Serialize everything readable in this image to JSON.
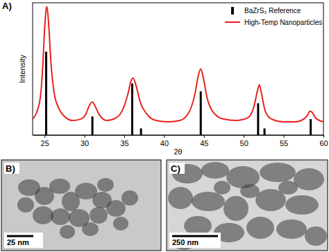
{
  "chart_data": {
    "type": "line",
    "annotations": [
      "A)"
    ],
    "x_label": "2θ",
    "y_label": "Intensity",
    "xlim": [
      23.5,
      60
    ],
    "xticks": [
      25,
      30,
      35,
      40,
      45,
      50,
      55,
      60
    ],
    "ylim": [
      0,
      100
    ],
    "tick_labels": "x",
    "legend": "top-right",
    "series": [
      {
        "name": "BaZrS₃ Reference",
        "type": "bar",
        "color": "#000000",
        "x": [
          25.2,
          31.0,
          36.0,
          37.1,
          44.6,
          51.8,
          52.6,
          58.4
        ],
        "values": [
          63,
          14,
          39,
          5,
          33,
          24,
          5,
          12
        ]
      },
      {
        "name": "High-Temp Nanoparticles",
        "type": "line",
        "color": "#e8211c",
        "x": [
          23.5,
          24,
          24.5,
          24.8,
          25,
          25.2,
          25.3,
          25.5,
          25.8,
          26.2,
          26.8,
          27.5,
          28.5,
          29.5,
          30.2,
          30.6,
          31,
          31.4,
          31.9,
          32.8,
          34,
          35,
          35.5,
          35.8,
          36.1,
          36.5,
          37,
          37.8,
          39,
          40.5,
          42,
          43.2,
          43.9,
          44.3,
          44.6,
          44.9,
          45.4,
          46.2,
          47.5,
          49,
          50.5,
          51.3,
          51.7,
          51.95,
          52.2,
          52.7,
          53.5,
          55,
          56.5,
          57.5,
          58,
          58.3,
          58.6,
          59,
          59.5,
          60
        ],
        "values": [
          12,
          17,
          30,
          55,
          80,
          95,
          97,
          85,
          55,
          32,
          20,
          14,
          11,
          12,
          16,
          22,
          25,
          21,
          15,
          11,
          13,
          22,
          32,
          40,
          43,
          37,
          25,
          16,
          11,
          10,
          11,
          18,
          32,
          45,
          50,
          44,
          28,
          17,
          12,
          11,
          13,
          22,
          33,
          38,
          32,
          18,
          12,
          10,
          10,
          12,
          15,
          18,
          17,
          13,
          11,
          10
        ]
      }
    ]
  },
  "images": [
    {
      "label": "B)",
      "scale_bar": "25 nm"
    },
    {
      "label": "C)",
      "scale_bar": "250 nm"
    }
  ]
}
